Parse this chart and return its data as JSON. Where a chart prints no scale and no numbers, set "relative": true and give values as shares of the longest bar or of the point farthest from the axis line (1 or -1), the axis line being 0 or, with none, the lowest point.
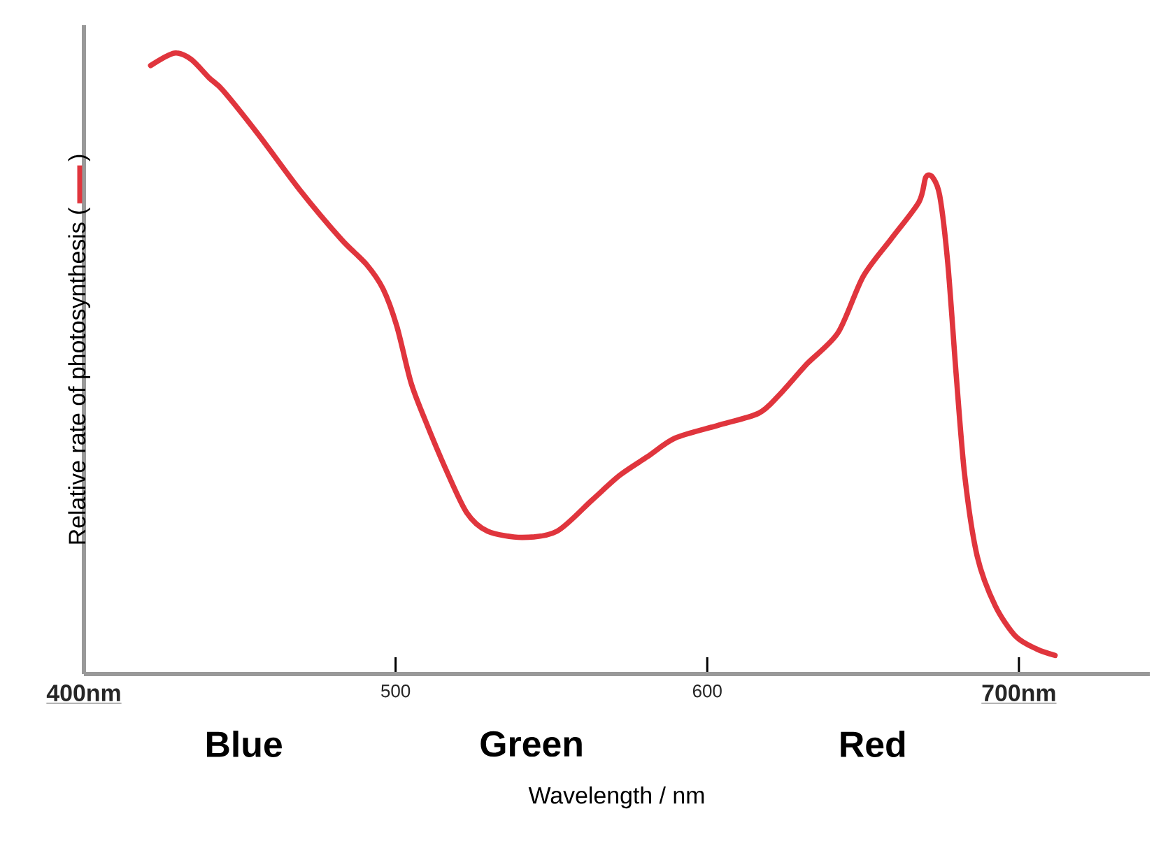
{
  "chart_data": {
    "type": "line",
    "relative": true,
    "xlabel": "Wavelength / nm",
    "ylabel": "Relative rate of photosynthesis (",
    "xlim": [
      400,
      742
    ],
    "xticks": [
      {
        "value": 400,
        "label": "400nm"
      },
      500,
      600,
      {
        "value": 700,
        "label": "700nm"
      }
    ],
    "annotations": [
      ")",
      "Blue",
      "Green",
      "Red"
    ],
    "series": [
      {
        "color": "#e0353d",
        "x": [
          421.4,
          429.0,
          434.4,
          440.2,
          444.6,
          455.8,
          469.2,
          482.6,
          490.6,
          496.0,
          500.4,
          504.9,
          509.4,
          516.1,
          522.8,
          529.5,
          540.6,
          551.8,
          563.0,
          571.9,
          580.8,
          589.7,
          603.1,
          616.5,
          623.2,
          632.1,
          642.0,
          650.0,
          658.9,
          667.9,
          670.1,
          672.3,
          674.6,
          677.2,
          679.9,
          682.6,
          686.6,
          692.4,
          699.1,
          705.8,
          711.6
        ],
        "values": [
          0.98,
          1.0,
          0.99,
          0.96,
          0.94,
          0.87,
          0.78,
          0.7,
          0.66,
          0.62,
          0.56,
          0.47,
          0.41,
          0.33,
          0.26,
          0.23,
          0.22,
          0.23,
          0.28,
          0.32,
          0.35,
          0.38,
          0.4,
          0.42,
          0.45,
          0.5,
          0.55,
          0.64,
          0.7,
          0.76,
          0.8,
          0.8,
          0.77,
          0.66,
          0.48,
          0.32,
          0.19,
          0.11,
          0.06,
          0.04,
          0.03
        ]
      }
    ]
  }
}
